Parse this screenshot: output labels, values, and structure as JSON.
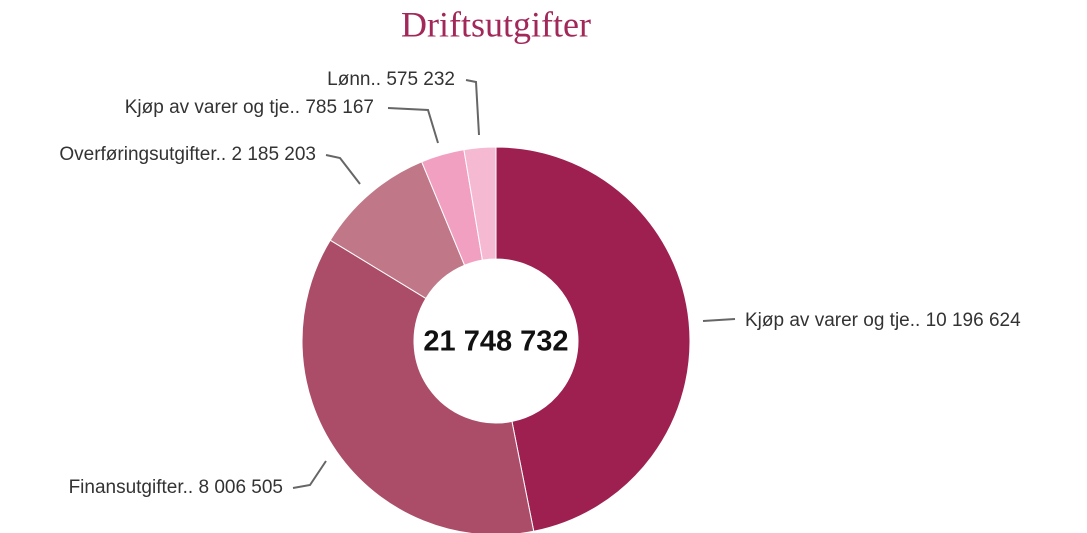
{
  "chart_data": {
    "type": "donut",
    "title": "Driftsutgifter",
    "categories": [
      "Kjøp av varer og tje..",
      "Finansutgifter..",
      "Overføringsutgifter..",
      "Kjøp av varer og tje..",
      "Lønn.."
    ],
    "values": [
      10196624,
      8006505,
      2185203,
      785167,
      575232
    ],
    "value_labels": [
      "10 196 624",
      "8 006 505",
      "2 185 203",
      "785 167",
      "575 232"
    ],
    "colors": [
      "#9e2050",
      "#ab4d68",
      "#c07888",
      "#f2a0c2",
      "#f5b9d2"
    ],
    "total_label": "21 748 732"
  }
}
